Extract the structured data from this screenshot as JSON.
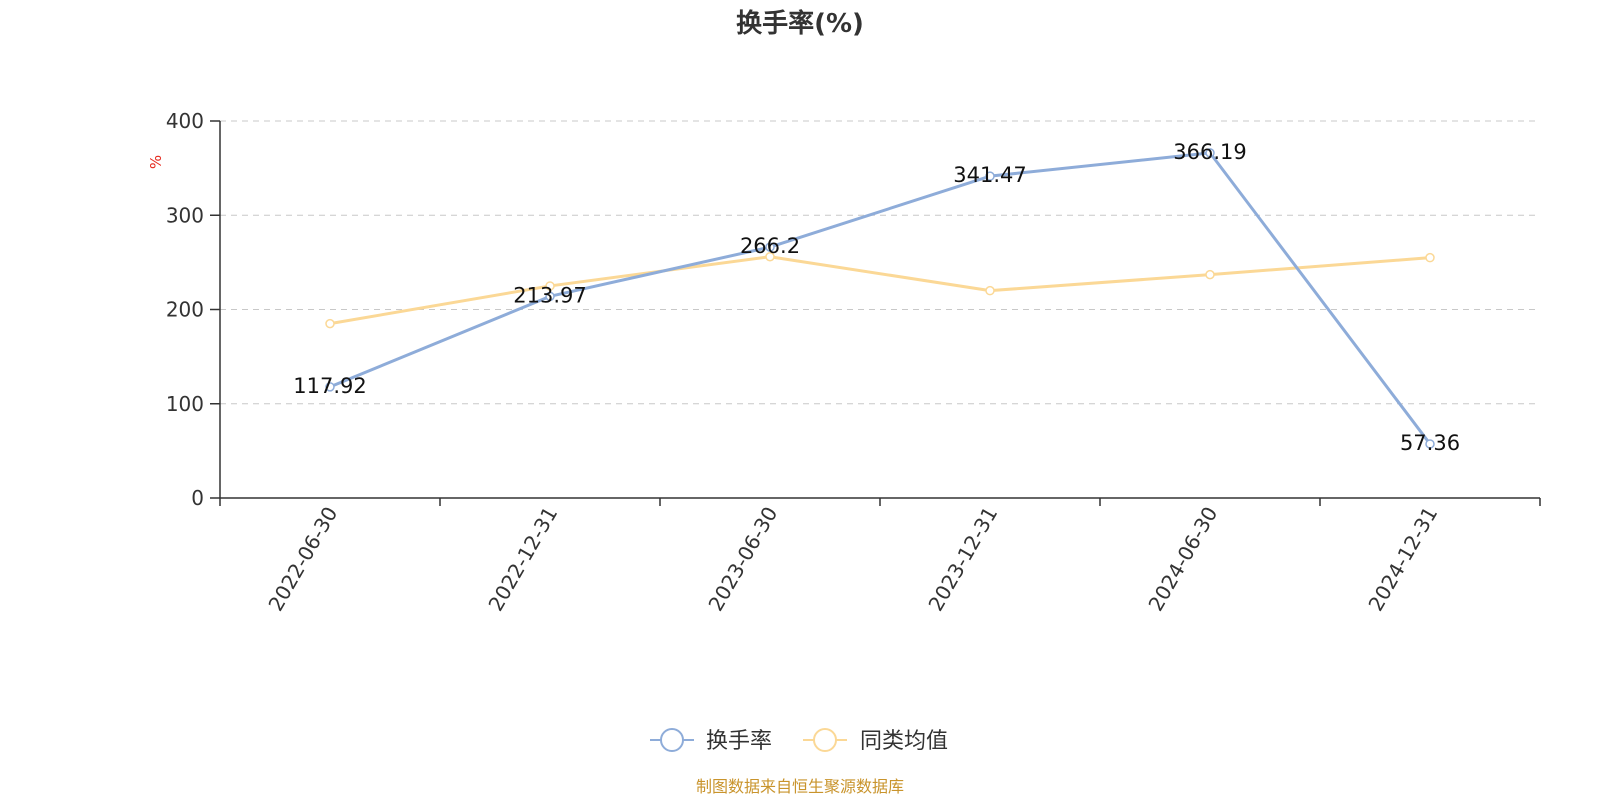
{
  "chart_data": {
    "type": "line",
    "title": "换手率(%)",
    "ylabel": "%",
    "xlabel": "",
    "categories": [
      "2022-06-30",
      "2022-12-31",
      "2023-06-30",
      "2023-12-31",
      "2024-06-30",
      "2024-12-31"
    ],
    "ylim": [
      0,
      400
    ],
    "yticks": [
      0,
      100,
      200,
      300,
      400
    ],
    "grid": true,
    "legend_position": "bottom-center",
    "series": [
      {
        "name": "换手率",
        "color": "#8eacd9",
        "values": [
          117.92,
          213.97,
          266.2,
          341.47,
          366.19,
          57.36
        ],
        "labels": [
          "117.92",
          "213.97",
          "266.2",
          "341.47",
          "366.19",
          "57.36"
        ]
      },
      {
        "name": "同类均值",
        "color": "#fbd896",
        "values": [
          185,
          225,
          256,
          220,
          237,
          255
        ]
      }
    ]
  },
  "source_note": "制图数据来自恒生聚源数据库"
}
